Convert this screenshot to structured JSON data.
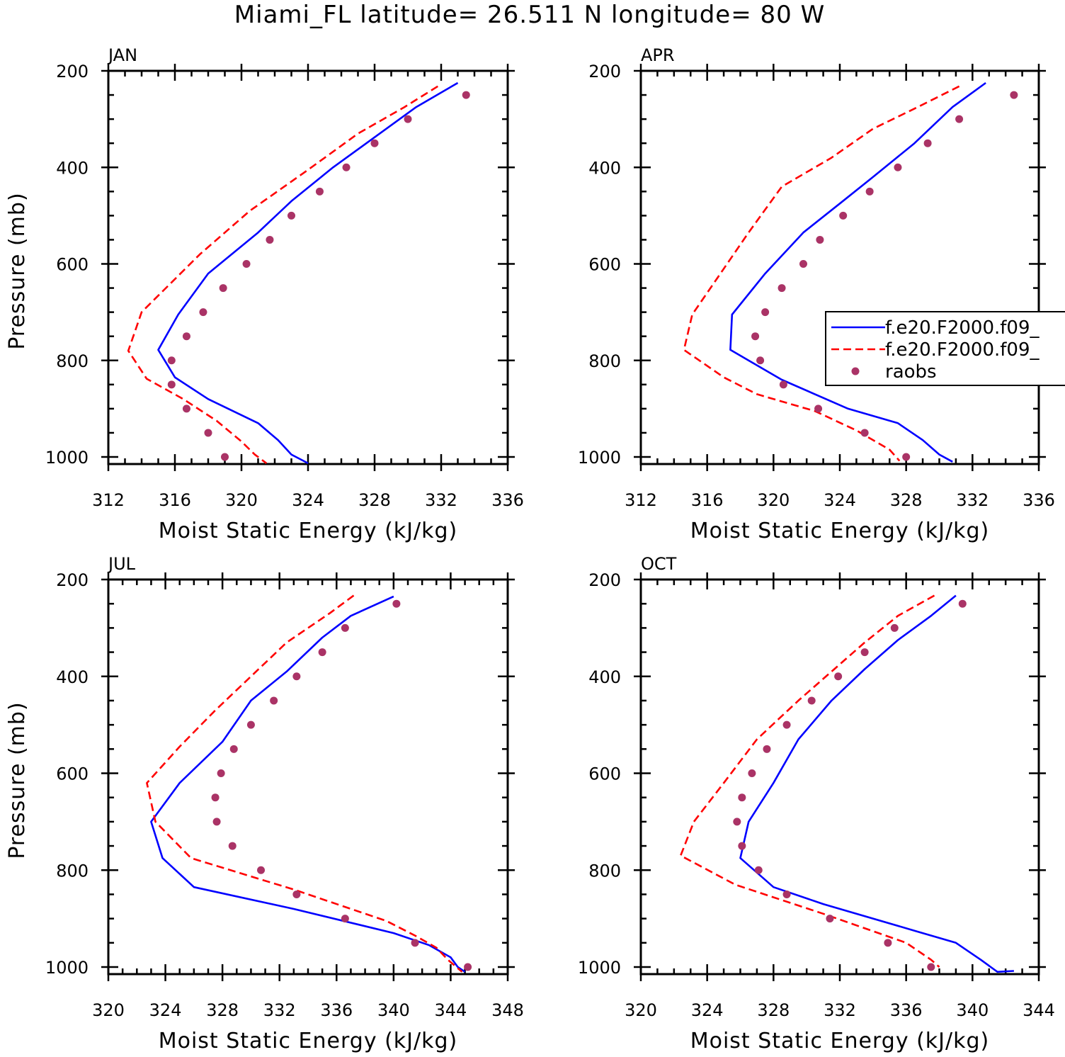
{
  "figure_title": "Miami_FL  latitude= 26.511 N longitude= 80 W",
  "legend": {
    "entries": [
      {
        "label": "f.e20.F2000.f09_",
        "style": "solid",
        "color": "#0000ff"
      },
      {
        "label": "f.e20.F2000.f09_",
        "style": "dashed",
        "color": "#ff0000"
      },
      {
        "label": "raobs",
        "style": "dot",
        "color": "#aa3366"
      }
    ]
  },
  "chart_data": [
    {
      "type": "line",
      "panel": "JAN",
      "title": "JAN",
      "xlabel": "Moist Static Energy (kJ/kg)",
      "ylabel": "Pressure (mb)",
      "xlim": [
        312,
        336
      ],
      "ylim": [
        1000,
        200
      ],
      "xticks": [
        312,
        316,
        320,
        324,
        328,
        332,
        336
      ],
      "yticks": [
        200,
        400,
        600,
        800,
        1000
      ],
      "series": [
        {
          "name": "f.e20.F2000.f09_",
          "style": "solid",
          "color": "#0000ff",
          "x": [
            333.0,
            330.5,
            328.5,
            325.5,
            323.0,
            321.0,
            318.0,
            316.2,
            315.0,
            316.0,
            318.0,
            321.0,
            322.2,
            323.0,
            324.0
          ],
          "y": [
            225,
            275,
            325,
            400,
            470,
            535,
            620,
            705,
            778,
            835,
            880,
            930,
            965,
            995,
            1013
          ]
        },
        {
          "name": "f.e20.F2000.f09_ ",
          "style": "dashed",
          "color": "#ff0000",
          "x": [
            331.8,
            329.8,
            327.0,
            324.0,
            320.5,
            317.5,
            314.0,
            313.2,
            314.3,
            316.5,
            318.5,
            320.0,
            320.8,
            321.5
          ],
          "y": [
            232,
            275,
            330,
            405,
            490,
            580,
            700,
            780,
            838,
            880,
            925,
            968,
            995,
            1013
          ]
        },
        {
          "name": "raobs",
          "style": "dot",
          "color": "#aa3366",
          "x": [
            333.5,
            330.0,
            328.0,
            326.3,
            324.7,
            323.0,
            321.7,
            320.3,
            318.9,
            317.7,
            316.7,
            315.8,
            315.8,
            316.7,
            318.0,
            319.0
          ],
          "y": [
            250,
            300,
            350,
            400,
            450,
            500,
            550,
            600,
            650,
            700,
            750,
            800,
            850,
            900,
            950,
            1000
          ]
        }
      ]
    },
    {
      "type": "line",
      "panel": "APR",
      "title": "APR",
      "xlabel": "Moist Static Energy (kJ/kg)",
      "ylabel": "",
      "xlim": [
        312,
        336
      ],
      "ylim": [
        1000,
        200
      ],
      "xticks": [
        312,
        316,
        320,
        324,
        328,
        332,
        336
      ],
      "yticks": [
        200,
        400,
        600,
        800,
        1000
      ],
      "series": [
        {
          "name": "f.e20.F2000.f09_",
          "style": "solid",
          "color": "#0000ff",
          "x": [
            332.8,
            330.8,
            328.5,
            326.0,
            324.0,
            321.8,
            319.5,
            317.5,
            317.4,
            320.5,
            324.5,
            327.5,
            329.0,
            330.0,
            330.8
          ],
          "y": [
            225,
            275,
            350,
            420,
            475,
            535,
            620,
            705,
            778,
            840,
            900,
            930,
            965,
            995,
            1010
          ]
        },
        {
          "name": "f.e20.F2000.f09_ ",
          "style": "dashed",
          "color": "#ff0000",
          "x": [
            331.2,
            328.7,
            326.0,
            323.5,
            320.5,
            318.5,
            317.0,
            315.1,
            314.6,
            317.0,
            319.0,
            322.5,
            325.0,
            327.0,
            327.6
          ],
          "y": [
            232,
            275,
            320,
            380,
            440,
            535,
            610,
            705,
            778,
            835,
            870,
            905,
            945,
            985,
            1008
          ]
        },
        {
          "name": "raobs",
          "style": "dot",
          "color": "#aa3366",
          "x": [
            334.5,
            331.2,
            329.3,
            327.5,
            325.8,
            324.2,
            322.8,
            321.8,
            320.5,
            319.5,
            318.9,
            319.2,
            320.6,
            322.7,
            325.5,
            328.0
          ],
          "y": [
            250,
            300,
            350,
            400,
            450,
            500,
            550,
            600,
            650,
            700,
            750,
            800,
            850,
            900,
            950,
            1000
          ]
        }
      ]
    },
    {
      "type": "line",
      "panel": "JUL",
      "title": "JUL",
      "xlabel": "Moist Static Energy (kJ/kg)",
      "ylabel": "Pressure (mb)",
      "xlim": [
        320,
        348
      ],
      "ylim": [
        1000,
        200
      ],
      "xticks": [
        320,
        324,
        328,
        332,
        336,
        340,
        344,
        348
      ],
      "yticks": [
        200,
        400,
        600,
        800,
        1000
      ],
      "series": [
        {
          "name": "f.e20.F2000.f09_",
          "style": "solid",
          "color": "#0000ff",
          "x": [
            340.0,
            337.0,
            335.0,
            332.5,
            330.0,
            328.0,
            325.0,
            323.0,
            323.8,
            326.0,
            333.0,
            340.0,
            342.5,
            344.0,
            344.5,
            345.0
          ],
          "y": [
            235,
            275,
            320,
            390,
            450,
            535,
            620,
            700,
            775,
            835,
            880,
            930,
            955,
            980,
            1000,
            1010
          ]
        },
        {
          "name": "f.e20.F2000.f09_ ",
          "style": "dashed",
          "color": "#ff0000",
          "x": [
            337.2,
            335.5,
            332.5,
            330.0,
            327.5,
            325.0,
            322.7,
            323.3,
            325.8,
            333.0,
            339.5,
            341.5,
            343.0,
            343.8,
            344.8
          ],
          "y": [
            233,
            270,
            330,
            400,
            470,
            545,
            620,
            700,
            775,
            840,
            905,
            935,
            960,
            985,
            1010
          ]
        },
        {
          "name": "raobs",
          "style": "dot",
          "color": "#aa3366",
          "x": [
            340.2,
            336.6,
            335.0,
            333.2,
            331.6,
            330.0,
            328.8,
            327.9,
            327.5,
            327.6,
            328.7,
            330.7,
            333.2,
            336.6,
            341.5,
            345.2
          ],
          "y": [
            250,
            300,
            350,
            400,
            450,
            500,
            550,
            600,
            650,
            700,
            750,
            800,
            850,
            900,
            950,
            1000
          ]
        }
      ]
    },
    {
      "type": "line",
      "panel": "OCT",
      "title": "OCT",
      "xlabel": "Moist Static Energy (kJ/kg)",
      "ylabel": "",
      "xlim": [
        320,
        344
      ],
      "ylim": [
        1000,
        200
      ],
      "xticks": [
        320,
        324,
        328,
        332,
        336,
        340,
        344
      ],
      "yticks": [
        200,
        400,
        600,
        800,
        1000
      ],
      "series": [
        {
          "name": "f.e20.F2000.f09_",
          "style": "solid",
          "color": "#0000ff",
          "x": [
            339.0,
            337.5,
            335.5,
            333.5,
            331.5,
            329.5,
            328.0,
            326.5,
            326.0,
            328.0,
            331.0,
            336.5,
            339.0,
            340.5,
            341.5,
            342.5
          ],
          "y": [
            233,
            275,
            325,
            385,
            450,
            530,
            620,
            700,
            775,
            835,
            870,
            925,
            950,
            985,
            1010,
            1008
          ]
        },
        {
          "name": "f.e20.F2000.f09_ ",
          "style": "dashed",
          "color": "#ff0000",
          "x": [
            337.7,
            335.5,
            333.5,
            331.5,
            329.5,
            327.0,
            325.0,
            323.2,
            322.4,
            325.7,
            331.0,
            336.0,
            337.5,
            338.0
          ],
          "y": [
            233,
            275,
            330,
            390,
            450,
            530,
            620,
            700,
            770,
            830,
            890,
            950,
            985,
            1000
          ]
        },
        {
          "name": "raobs",
          "style": "dot",
          "color": "#aa3366",
          "x": [
            339.4,
            335.3,
            333.5,
            331.9,
            330.3,
            328.8,
            327.6,
            326.7,
            326.1,
            325.8,
            326.1,
            327.1,
            328.8,
            331.4,
            334.9,
            337.5
          ],
          "y": [
            250,
            300,
            350,
            400,
            450,
            500,
            550,
            600,
            650,
            700,
            750,
            800,
            850,
            900,
            950,
            1000
          ]
        }
      ]
    }
  ]
}
